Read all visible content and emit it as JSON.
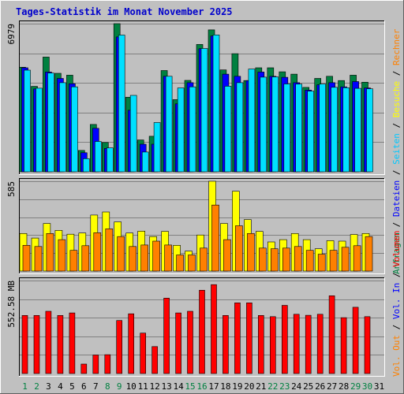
{
  "chart_data": {
    "title": "Tages-Statistik im Monat November 2025",
    "type": "bar",
    "colors": {
      "title": "#0000cc",
      "background": "#c0c0c0",
      "grid": "#808080",
      "axis_label": "#000000",
      "weekday": "#000000",
      "weekend": "#008040",
      "anfragen": "#008040",
      "dateien": "#0000ff",
      "seiten": "#00c8ff",
      "besuche": "#ffff00",
      "rechner": "#ff8000",
      "volumen": "#ff0000"
    },
    "days": [
      "1",
      "2",
      "3",
      "4",
      "5",
      "6",
      "7",
      "8",
      "9",
      "10",
      "11",
      "12",
      "13",
      "14",
      "15",
      "16",
      "17",
      "18",
      "19",
      "20",
      "21",
      "22",
      "23",
      "24",
      "25",
      "26",
      "27",
      "28",
      "29",
      "30",
      "31"
    ],
    "weekend_days": [
      1,
      2,
      8,
      9,
      15,
      16,
      22,
      23,
      29,
      30
    ],
    "legend_right_top": [
      {
        "key": "anfragen",
        "label": "Anfragen"
      },
      {
        "key": "sep",
        "label": " / "
      },
      {
        "key": "dateien",
        "label": "Dateien"
      },
      {
        "key": "sep",
        "label": " / "
      },
      {
        "key": "seiten",
        "label": "Seiten"
      },
      {
        "key": "sep",
        "label": " / "
      },
      {
        "key": "besuche",
        "label": "Besuche"
      },
      {
        "key": "sep",
        "label": " / "
      },
      {
        "key": "rechner",
        "label": "Rechner"
      }
    ],
    "legend_right_bottom": [
      {
        "key": "vol_out",
        "label": "Vol. Out"
      },
      {
        "key": "sep",
        "label": " / "
      },
      {
        "key": "vol_in",
        "label": "Vol. In"
      },
      {
        "key": "sep",
        "label": " / "
      },
      {
        "key": "volumen",
        "label": "Volumen"
      }
    ],
    "panels": [
      {
        "id": "hits",
        "ymax": 6979,
        "ymax_label": "6979",
        "series": [
          {
            "name": "Anfragen",
            "color": "#008040",
            "values": [
              4925,
              4025,
              5405,
              4640,
              4550,
              1005,
              2230,
              1380,
              6979,
              3510,
              1500,
              1675,
              4772,
              3400,
              4306,
              6000,
              6684,
              4800,
              5565,
              4300,
              4900,
              4900,
              4710,
              4600,
              3975,
              4400,
              4500,
              4300,
              4550,
              4220,
              0
            ]
          },
          {
            "name": "Dateien",
            "color": "#0000ff",
            "values": [
              4900,
              3900,
              4700,
              4400,
              4150,
              900,
              2050,
              1100,
              6350,
              2900,
              1300,
              1300,
              4500,
              3200,
              4200,
              5800,
              6400,
              4600,
              4500,
              4300,
              4700,
              4500,
              4450,
              4200,
              3850,
              4100,
              4200,
              4000,
              4250,
              3950,
              0
            ]
          },
          {
            "name": "Seiten",
            "color": "#00e0ff",
            "values": [
              4788,
              3940,
              4650,
              4200,
              4000,
              620,
              1430,
              1130,
              6440,
              3600,
              930,
              2320,
              4500,
              3950,
              4000,
              5810,
              6450,
              4030,
              4200,
              4840,
              4460,
              4470,
              4140,
              4130,
              3800,
              4130,
              3980,
              3960,
              3930,
              3910,
              0
            ]
          }
        ]
      },
      {
        "id": "visits",
        "ymax": 585,
        "ymax_label": "585",
        "series": [
          {
            "name": "Besuche",
            "color": "#ffff00",
            "values": [
              245,
              215,
              310,
              265,
              240,
              248,
              365,
              385,
              320,
              248,
              260,
              225,
              258,
              168,
              130,
              235,
              585,
              310,
              520,
              335,
              258,
              190,
              205,
              245,
              205,
              145,
              198,
              195,
              238,
              245,
              0
            ]
          },
          {
            "name": "Rechner",
            "color": "#ff8000",
            "values": [
              168,
              160,
              245,
              205,
              135,
              165,
              250,
              275,
              225,
              160,
              170,
              195,
              170,
              105,
              105,
              150,
              430,
              205,
              295,
              245,
              150,
              145,
              150,
              160,
              135,
              110,
              135,
              155,
              165,
              225,
              0
            ]
          }
        ]
      },
      {
        "id": "volume",
        "ymax": 552.58,
        "ymax_label": "552.58 MB",
        "series": [
          {
            "name": "Volumen",
            "color": "#ff0000",
            "values": [
              345,
              345,
              370,
              345,
              360,
              56,
              110,
              112,
              315,
              355,
              240,
              160,
              448,
              360,
              370,
              495,
              528,
              345,
              420,
              420,
              345,
              338,
              405,
              352,
              346,
              352,
              462,
              332,
              394,
              338,
              0
            ]
          }
        ]
      }
    ]
  }
}
